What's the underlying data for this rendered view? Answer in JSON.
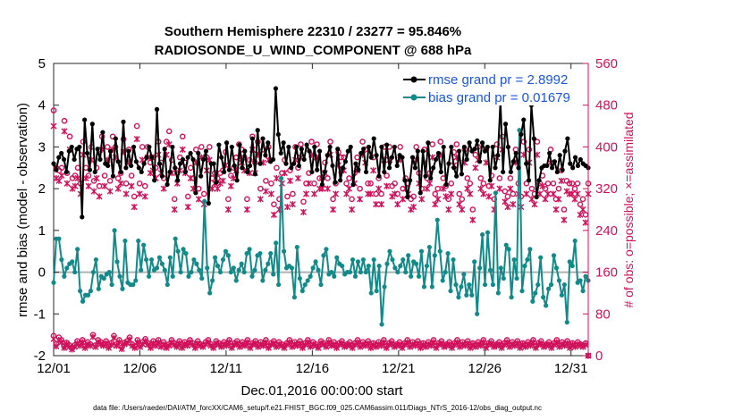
{
  "chart_data": {
    "type": "line",
    "title": [
      "Southern Hemisphere 22310 / 23277 = 95.846%",
      "RADIOSONDE_U_WIND_COMPONENT @ 688 hPa"
    ],
    "xlabel": "Dec.01,2016 00:00:00 start",
    "ylabel": "rmse and bias (model - observation)",
    "y2label": "# of obs: o=possible; ×=assimilated",
    "xlim": [
      0,
      31
    ],
    "ylim": [
      -2,
      5
    ],
    "y2lim": [
      0,
      560
    ],
    "x_tick_labels": [
      "12/01",
      "12/06",
      "12/11",
      "12/16",
      "12/21",
      "12/26",
      "12/31"
    ],
    "x_tick_values": [
      0,
      5,
      10,
      15,
      20,
      25,
      30
    ],
    "y_ticks": [
      -2,
      -1,
      0,
      1,
      2,
      3,
      4,
      5
    ],
    "y2_ticks": [
      0,
      80,
      160,
      240,
      320,
      400,
      480,
      560
    ],
    "zero_line": 0,
    "colors": {
      "rmse": "#000000",
      "bias": "#138a8a",
      "obs": "#d0105a",
      "legend_text": "#1b55e0",
      "zero": "#b0b0b0"
    },
    "series": [
      {
        "name": "rmse grand pr = 2.8992",
        "axis": "left",
        "values": [
          2.6,
          2.45,
          2.75,
          2.85,
          2.7,
          2.4,
          2.9,
          3.0,
          2.7,
          2.95,
          3.0,
          1.32,
          3.65,
          2.85,
          2.45,
          3.55,
          2.4,
          2.95,
          2.7,
          3.35,
          2.6,
          2.55,
          2.9,
          2.3,
          3.2,
          2.65,
          2.4,
          3.6,
          2.5,
          2.9,
          2.55,
          3.0,
          2.65,
          2.5,
          2.4,
          2.6,
          2.75,
          3.0,
          2.75,
          2.2,
          3.9,
          2.6,
          2.3,
          2.95,
          2.1,
          2.4,
          3.0,
          2.5,
          2.2,
          2.6,
          2.7,
          2.4,
          2.75,
          2.85,
          2.7,
          1.9,
          2.85,
          2.3,
          2.7,
          2.9,
          1.65,
          2.6,
          2.6,
          2.15,
          3.05,
          2.75,
          2.4,
          3.1,
          2.45,
          3.0,
          2.55,
          2.2,
          3.05,
          2.5,
          2.9,
          2.4,
          2.55,
          3.2,
          2.35,
          3.4,
          2.6,
          3.2,
          2.8,
          3.1,
          2.65,
          2.7,
          4.4,
          3.3,
          2.85,
          3.1,
          2.6,
          3.0,
          2.5,
          2.6,
          3.0,
          2.55,
          2.95,
          2.7,
          3.05,
          2.9,
          2.4,
          3.0,
          2.45,
          2.9,
          2.1,
          2.4,
          2.8,
          3.0,
          2.55,
          2.15,
          2.95,
          2.2,
          2.5,
          2.65,
          2.9,
          3.0,
          2.1,
          2.6,
          2.45,
          2.85,
          2.95,
          2.4,
          3.0,
          2.75,
          3.2,
          2.8,
          2.3,
          3.0,
          2.4,
          3.05,
          2.5,
          2.75,
          3.0,
          2.55,
          2.8,
          2.75,
          2.2,
          1.8,
          2.2,
          2.75,
          2.5,
          2.9,
          1.9,
          2.9,
          2.3,
          3.1,
          2.25,
          2.5,
          2.7,
          2.85,
          2.4,
          3.0,
          2.1,
          2.6,
          3.0,
          2.5,
          2.3,
          2.9,
          2.35,
          3.0,
          2.7,
          3.1,
          2.9,
          2.95,
          3.15,
          2.65,
          3.1,
          2.9,
          3.0,
          2.2,
          3.0,
          2.5,
          2.8,
          4.1,
          2.4,
          3.55,
          3.0,
          2.4,
          2.65,
          2.85,
          2.5,
          3.3,
          3.65,
          2.6,
          2.2,
          4.0,
          3.2,
          1.8,
          2.2,
          2.5,
          2.55,
          2.55,
          2.85,
          2.5,
          2.65,
          2.4,
          2.8,
          2.45,
          2.9,
          3.2,
          2.6,
          2.5,
          2.75,
          2.55,
          2.7,
          2.6,
          2.55,
          2.5
        ]
      },
      {
        "name": "bias grand pr = 0.01679",
        "axis": "left",
        "values": [
          -0.25,
          0.8,
          0.8,
          0.3,
          -0.1,
          0.1,
          0.2,
          0.25,
          0.0,
          0.55,
          -0.45,
          -0.7,
          -0.55,
          -0.55,
          -0.45,
          0.0,
          0.3,
          -0.4,
          -0.1,
          -0.15,
          -0.05,
          0.0,
          -0.3,
          1.0,
          0.25,
          -0.1,
          -0.4,
          0.75,
          -0.25,
          -0.3,
          -0.3,
          -0.2,
          0.75,
          0.05,
          0.65,
          0.3,
          -0.1,
          0.3,
          0.05,
          0.1,
          0.35,
          0.2,
          0.05,
          -0.3,
          0.35,
          -0.1,
          0.8,
          0.5,
          0.0,
          0.55,
          0.45,
          -0.1,
          0.0,
          0.3,
          0.2,
          0.05,
          -0.15,
          1.7,
          0.1,
          -0.5,
          -0.2,
          0.35,
          0.15,
          0.0,
          0.3,
          0.5,
          0.4,
          0.0,
          0.1,
          -0.2,
          0.05,
          0.2,
          0.0,
          0.45,
          0.55,
          -0.1,
          0.05,
          0.4,
          0.45,
          -0.2,
          0.05,
          0.2,
          0.45,
          -0.05,
          0.7,
          -0.3,
          2.25,
          0.5,
          0.1,
          0.15,
          0.1,
          -0.6,
          0.6,
          -0.15,
          -0.45,
          -0.3,
          -0.2,
          -0.1,
          0.1,
          0.25,
          0.05,
          -0.3,
          0.4,
          0.55,
          -0.05,
          0.0,
          -0.1,
          0.35,
          0.2,
          0.15,
          -0.05,
          0.0,
          0.0,
          0.3,
          -0.1,
          0.25,
          0.0,
          0.3,
          0.0,
          0.15,
          -0.5,
          0.3,
          -0.45,
          0.15,
          -1.25,
          -0.35,
          0.2,
          0.5,
          0.3,
          0.1,
          0.0,
          0.15,
          0.3,
          0.0,
          0.4,
          -0.1,
          0.25,
          0.2,
          -0.1,
          0.5,
          -0.35,
          0.15,
          0.6,
          -0.35,
          0.4,
          1.25,
          0.5,
          -0.2,
          0.0,
          0.45,
          -0.45,
          0.3,
          -0.3,
          -0.6,
          -0.35,
          -0.05,
          -0.55,
          -0.3,
          -0.55,
          0.25,
          -1.0,
          0.1,
          0.9,
          -0.3,
          0.95,
          0.05,
          -0.3,
          1.9,
          -0.5,
          0.1,
          -0.15,
          0.65,
          0.55,
          -0.6,
          0.3,
          -0.15,
          3.4,
          -0.45,
          0.15,
          0.3,
          0.55,
          -0.7,
          -0.5,
          -0.3,
          0.35,
          -0.6,
          -0.8,
          -0.4,
          -0.3,
          0.4,
          0.1,
          -0.2,
          -0.55,
          -0.3,
          -1.2,
          0.25,
          0.15,
          0.75,
          -0.25,
          -0.2,
          -0.45,
          -0.1,
          -0.2
        ]
      },
      {
        "name": "# of obs possible",
        "axis": "right",
        "marker": "o",
        "values": [
          470,
          360,
          355,
          360,
          450,
          350,
          420,
          340,
          345,
          360,
          330,
          410,
          360,
          345,
          400,
          335,
          360,
          325,
          420,
          345,
          400,
          335,
          420,
          400,
          340,
          350,
          415,
          330,
          395,
          345,
          305,
          440,
          330,
          400,
          325,
          400,
          370,
          380,
          360,
          410,
          370,
          340,
          410,
          430,
          375,
          300,
          350,
          380,
          420,
          370,
          305,
          360,
          340,
          395,
          320,
          400,
          310,
          380,
          400,
          340,
          350,
          340,
          350,
          355,
          390,
          300,
          345,
          360,
          380,
          405,
          395,
          380,
          300,
          375,
          420,
          370,
          410,
          320,
          395,
          335,
          400,
          330,
          290,
          360,
          300,
          350,
          375,
          305,
          355,
          310,
          400,
          360,
          405,
          295,
          330,
          350,
          410,
          330,
          405,
          340,
          340,
          370,
          340,
          410,
          300,
          330,
          390,
          380,
          380,
          330,
          340,
          300,
          350,
          380,
          320,
          410,
          395,
          330,
          330,
          380,
          310,
          340,
          310,
          400,
          345,
          400,
          325,
          330,
          310,
          400,
          320,
          340,
          330,
          300,
          305,
          400,
          350,
          320,
          395,
          340,
          350,
          405,
          310,
          320,
          410,
          340,
          325,
          300,
          330,
          390,
          405,
          310,
          300,
          395,
          340,
          330,
          280,
          385,
          400,
          340,
          330,
          395,
          325,
          345,
          300,
          405,
          340,
          420,
          315,
          305,
          340,
          310,
          395,
          330,
          305,
          410,
          330,
          395,
          320,
          310,
          410,
          330,
          345,
          320,
          330,
          395,
          330,
          300,
          320,
          355,
          280,
          335,
          330,
          330,
          320,
          330,
          290,
          300,
          270,
          330
        ]
      },
      {
        "name": "# of obs assimilated",
        "axis": "right",
        "marker": "x",
        "values": [
          440,
          340,
          335,
          345,
          430,
          330,
          395,
          320,
          325,
          340,
          310,
          385,
          340,
          325,
          375,
          315,
          340,
          305,
          395,
          325,
          375,
          315,
          395,
          380,
          320,
          330,
          390,
          310,
          370,
          325,
          285,
          415,
          310,
          375,
          305,
          380,
          350,
          355,
          340,
          385,
          350,
          320,
          385,
          405,
          350,
          280,
          330,
          355,
          395,
          350,
          285,
          340,
          320,
          370,
          300,
          380,
          290,
          355,
          375,
          320,
          330,
          320,
          330,
          335,
          365,
          280,
          325,
          340,
          355,
          380,
          370,
          355,
          280,
          350,
          395,
          350,
          385,
          300,
          370,
          315,
          375,
          310,
          270,
          340,
          280,
          330,
          350,
          285,
          335,
          290,
          375,
          340,
          380,
          275,
          310,
          330,
          385,
          310,
          380,
          320,
          320,
          350,
          320,
          385,
          280,
          310,
          365,
          355,
          355,
          310,
          320,
          280,
          330,
          355,
          300,
          385,
          370,
          310,
          310,
          355,
          290,
          320,
          290,
          375,
          325,
          375,
          305,
          310,
          290,
          375,
          300,
          320,
          310,
          280,
          285,
          375,
          330,
          300,
          370,
          320,
          330,
          380,
          290,
          300,
          385,
          320,
          305,
          280,
          310,
          365,
          380,
          290,
          280,
          370,
          320,
          310,
          260,
          360,
          375,
          320,
          310,
          370,
          305,
          325,
          280,
          380,
          320,
          395,
          295,
          285,
          320,
          290,
          370,
          310,
          285,
          385,
          310,
          370,
          300,
          290,
          385,
          310,
          325,
          300,
          310,
          370,
          310,
          280,
          300,
          335,
          260,
          315,
          310,
          310,
          300,
          310,
          270,
          280,
          255,
          310
        ]
      }
    ],
    "lower_obs": {
      "possible": [
        38,
        22,
        35,
        30,
        18,
        25,
        20,
        15,
        20,
        28,
        22,
        30,
        18,
        26,
        22,
        40,
        20,
        30,
        26,
        22,
        28,
        18,
        24,
        38,
        22,
        30,
        16,
        25,
        28,
        35,
        22,
        18,
        30,
        20,
        26,
        32,
        24,
        18,
        28,
        22,
        30,
        20,
        26,
        18,
        22,
        30,
        24,
        20,
        28,
        18,
        26,
        22,
        30,
        24,
        18,
        28,
        22,
        20,
        26,
        30,
        22,
        18,
        28,
        24,
        20,
        26,
        22,
        30,
        18,
        24,
        28,
        20,
        26,
        22,
        30,
        18,
        24,
        28,
        20,
        26,
        22,
        30,
        18,
        24,
        28,
        20,
        26,
        22,
        18,
        24,
        30,
        20,
        26,
        22,
        28,
        18,
        24,
        30,
        20,
        26,
        22,
        18,
        28,
        24,
        20,
        30,
        22,
        26,
        18,
        24,
        28,
        20,
        22,
        26,
        18,
        24,
        30,
        20,
        26,
        22,
        28,
        18,
        24,
        20,
        26,
        22,
        30,
        18,
        24,
        28,
        20,
        22,
        26,
        18,
        24,
        30,
        20,
        26,
        22,
        28,
        18,
        24,
        20,
        26,
        22,
        30,
        18,
        24,
        28,
        20,
        22,
        26,
        18,
        24,
        30,
        20,
        26,
        22,
        28,
        18,
        24,
        20,
        26,
        22,
        30,
        18,
        24,
        28,
        20,
        22,
        26,
        18,
        24,
        30,
        20,
        26,
        22,
        28,
        18,
        24,
        20,
        26,
        22,
        30,
        18,
        24,
        28,
        20,
        22,
        26,
        18,
        24,
        30,
        20,
        26,
        22,
        28,
        18,
        24,
        20,
        26,
        22,
        20,
        24,
        0
      ],
      "assimilated": [
        32,
        18,
        30,
        26,
        15,
        22,
        17,
        12,
        17,
        24,
        19,
        26,
        15,
        22,
        19,
        36,
        17,
        26,
        22,
        19,
        24,
        15,
        21,
        34,
        19,
        26,
        13,
        22,
        24,
        31,
        19,
        15,
        26,
        17,
        22,
        28,
        21,
        15,
        24,
        19,
        26,
        17,
        22,
        15,
        19,
        26,
        21,
        17,
        24,
        15,
        22,
        19,
        26,
        21,
        15,
        24,
        19,
        17,
        22,
        26,
        19,
        15,
        24,
        21,
        17,
        22,
        19,
        26,
        15,
        21,
        24,
        17,
        22,
        19,
        26,
        15,
        21,
        24,
        17,
        22,
        19,
        26,
        15,
        21,
        24,
        17,
        22,
        19,
        15,
        21,
        26,
        17,
        22,
        19,
        24,
        15,
        21,
        26,
        17,
        22,
        19,
        15,
        24,
        21,
        17,
        26,
        19,
        22,
        15,
        21,
        24,
        17,
        19,
        22,
        15,
        21,
        26,
        17,
        22,
        19,
        24,
        15,
        21,
        17,
        22,
        19,
        26,
        15,
        21,
        24,
        17,
        19,
        22,
        15,
        21,
        26,
        17,
        22,
        19,
        24,
        15,
        21,
        17,
        22,
        19,
        26,
        15,
        21,
        24,
        17,
        19,
        22,
        15,
        21,
        26,
        17,
        22,
        19,
        24,
        15,
        21,
        17,
        22,
        19,
        26,
        15,
        21,
        24,
        17,
        19,
        22,
        15,
        21,
        26,
        17,
        22,
        19,
        24,
        15,
        21,
        17,
        22,
        19,
        26,
        15,
        21,
        24,
        17,
        19,
        22,
        15,
        21,
        26,
        17,
        22,
        19,
        24,
        15,
        21,
        17,
        22,
        19,
        17,
        21,
        0
      ]
    },
    "legend_placement": "top-right"
  },
  "footer": "data file: /Users/raeder/DAI/ATM_forcXX/CAM6_setup/f.e21.FHIST_BGC.f09_025.CAM6assim.011/Diags_NTrS_2016-12/obs_diag_output.nc"
}
